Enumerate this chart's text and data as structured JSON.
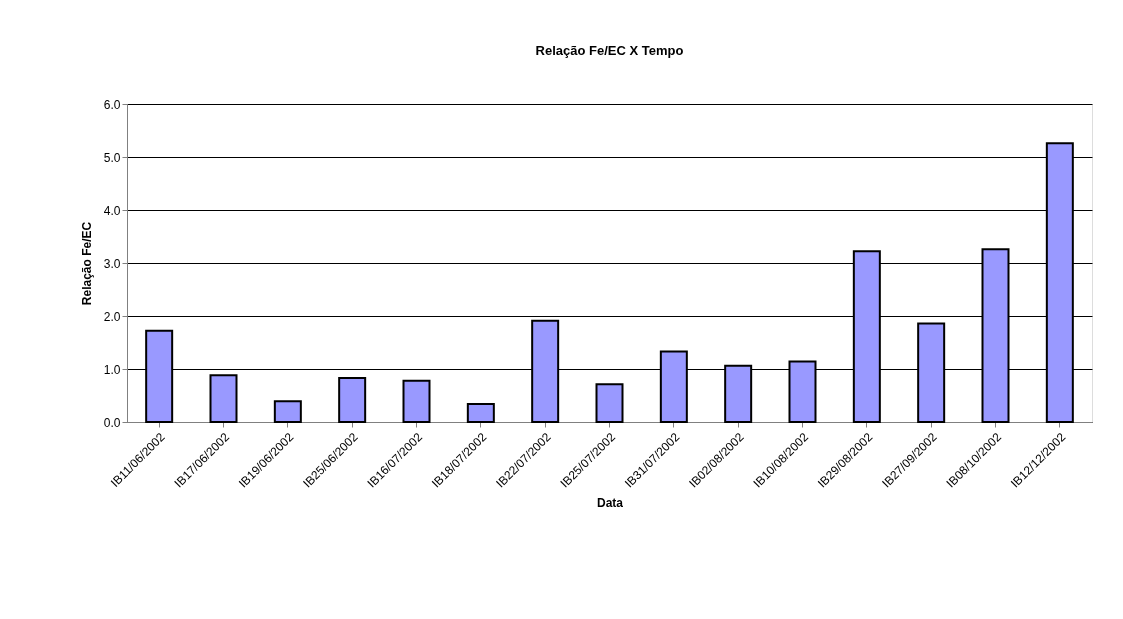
{
  "chart_data": {
    "type": "bar",
    "title": "Relação Fe/EC X Tempo",
    "xlabel": "Data",
    "ylabel": "Relação Fe/EC",
    "categories": [
      "IB11/06/2002",
      "IB17/06/2002",
      "IB19/06/2002",
      "IB25/06/2002",
      "IB16/07/2002",
      "IB18/07/2002",
      "IB22/07/2002",
      "IB25/07/2002",
      "IB31/07/2002",
      "IB02/08/2002",
      "IB10/08/2002",
      "IB29/08/2002",
      "IB27/09/2002",
      "IB08/10/2002",
      "IB12/12/2002"
    ],
    "values": [
      1.72,
      0.88,
      0.39,
      0.83,
      0.78,
      0.34,
      1.91,
      0.71,
      1.33,
      1.06,
      1.14,
      3.22,
      1.86,
      3.26,
      5.26
    ],
    "color": "#9999ff",
    "ylim": [
      0,
      6
    ],
    "yticks": [
      {
        "value": 0,
        "label": "0.0"
      },
      {
        "value": 1,
        "label": "1.0"
      },
      {
        "value": 2,
        "label": "2.0"
      },
      {
        "value": 3,
        "label": "3.0"
      },
      {
        "value": 4,
        "label": "4.0"
      },
      {
        "value": 5,
        "label": "5.0"
      },
      {
        "value": 6,
        "label": "6.0"
      }
    ],
    "grid": "y"
  }
}
